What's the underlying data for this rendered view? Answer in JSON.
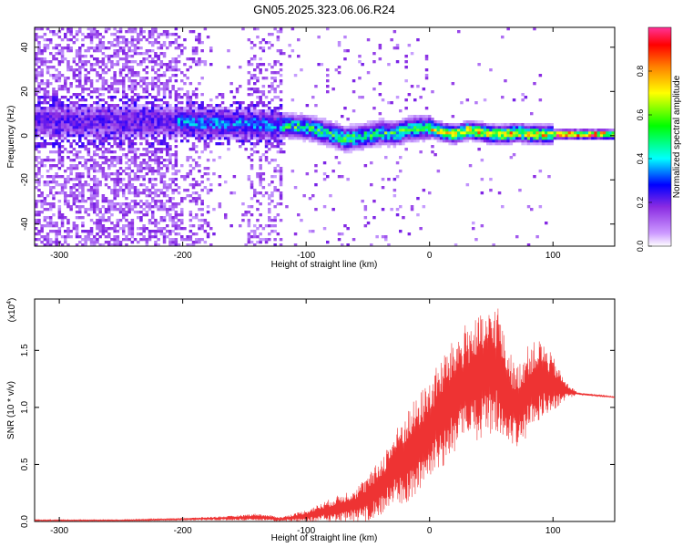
{
  "figure": {
    "title": "GN05.2025.323.06.06.R24"
  },
  "chart_data": [
    {
      "type": "heatmap",
      "xlabel": "Height of straight line (km)",
      "ylabel": "Frequency (Hz)",
      "xlim": [
        -320,
        150
      ],
      "ylim": [
        -50,
        49
      ],
      "xticks": [
        -300,
        -200,
        -100,
        0,
        100
      ],
      "yticks": [
        -40,
        -20,
        0,
        20,
        40
      ],
      "colorbar": {
        "label": "Normalized spectral amplitude",
        "range": [
          0,
          1
        ],
        "ticks": [
          "0.0",
          "0.2",
          "0.4",
          "0.6",
          "0.8"
        ],
        "colors": [
          "#ffffff",
          "#8a2be2",
          "#0000ff",
          "#00ffff",
          "#00ff00",
          "#ffff00",
          "#ff8000",
          "#ff0000",
          "#ff3399"
        ]
      },
      "ridge": [
        {
          "x": -210,
          "y": 6
        },
        {
          "x": -180,
          "y": 5
        },
        {
          "x": -150,
          "y": 5
        },
        {
          "x": -120,
          "y": 4
        },
        {
          "x": -100,
          "y": 3
        },
        {
          "x": -80,
          "y": 0
        },
        {
          "x": -70,
          "y": -2
        },
        {
          "x": -55,
          "y": -1
        },
        {
          "x": -40,
          "y": 1
        },
        {
          "x": -30,
          "y": 0
        },
        {
          "x": -20,
          "y": 2
        },
        {
          "x": -10,
          "y": 3
        },
        {
          "x": 0,
          "y": 3
        },
        {
          "x": 10,
          "y": 1
        },
        {
          "x": 20,
          "y": 0
        },
        {
          "x": 30,
          "y": 2
        },
        {
          "x": 40,
          "y": 1
        },
        {
          "x": 50,
          "y": 0
        },
        {
          "x": 60,
          "y": 0
        },
        {
          "x": 70,
          "y": 1
        },
        {
          "x": 80,
          "y": 0
        },
        {
          "x": 100,
          "y": 0
        },
        {
          "x": 150,
          "y": 0
        }
      ]
    },
    {
      "type": "line",
      "xlabel": "Height of straight line (km)",
      "ylabel": "SNR (10 * v/v)",
      "y_multiplier": "(x10",
      "y_multiplier_exp": "4",
      "xlim": [
        -320,
        150
      ],
      "ylim": [
        0,
        1.95
      ],
      "xticks": [
        -300,
        -200,
        -100,
        0,
        100
      ],
      "yticks": [
        "0.0",
        "0.5",
        "1.0",
        "1.5"
      ],
      "color": "#ee3333",
      "series": [
        {
          "x": [
            -320,
            -250,
            -200,
            -160,
            -140,
            -120,
            -100,
            -80,
            -60,
            -50,
            -40,
            -30,
            -20,
            -10,
            0,
            10,
            20,
            30,
            40,
            50,
            55,
            60,
            70,
            80,
            90,
            100,
            110,
            120,
            150
          ],
          "values": [
            0.01,
            0.01,
            0.02,
            0.03,
            0.04,
            0.02,
            0.05,
            0.1,
            0.15,
            0.2,
            0.3,
            0.45,
            0.55,
            0.65,
            0.8,
            0.95,
            1.1,
            1.2,
            1.25,
            1.3,
            1.35,
            1.2,
            1.0,
            1.15,
            1.25,
            1.2,
            1.15,
            1.12,
            1.09
          ],
          "amplitude": [
            0.005,
            0.005,
            0.01,
            0.02,
            0.03,
            0.02,
            0.05,
            0.1,
            0.15,
            0.2,
            0.25,
            0.3,
            0.4,
            0.45,
            0.45,
            0.5,
            0.5,
            0.55,
            0.55,
            0.55,
            0.6,
            0.45,
            0.35,
            0.4,
            0.35,
            0.25,
            0.08,
            0.01,
            0.005
          ]
        }
      ]
    }
  ]
}
